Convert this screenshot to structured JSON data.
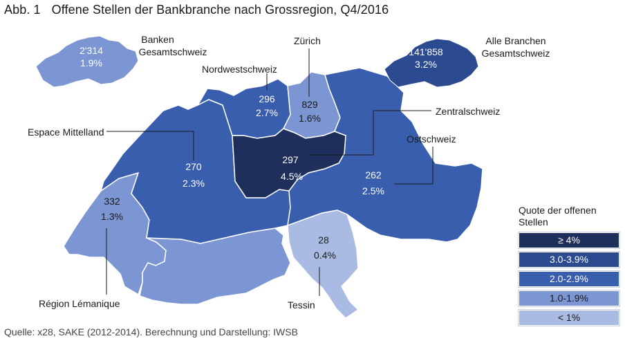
{
  "title": {
    "figure": "Abb. 1",
    "text": "Offene Stellen der Bankbranche nach Grossregion, Q4/2016"
  },
  "source": "Quelle: x28, SAKE (2012-2014). Berechnung und Darstellung: IWSB",
  "colors": {
    "class_ge4": "#1f2f5c",
    "class_3_39": "#2c4a8f",
    "class_2_29": "#3a5eae",
    "class_1_19": "#7b96d3",
    "class_lt1": "#a9bbe2"
  },
  "regions": {
    "nordwestschweiz": {
      "name": "Nordwestschweiz",
      "count": "296",
      "rate": "2.7%"
    },
    "zuerich": {
      "name": "Zürich",
      "count": "829",
      "rate": "1.6%"
    },
    "zentralschweiz": {
      "name": "Zentralschweiz",
      "count": "297",
      "rate": "4.5%"
    },
    "ostschweiz": {
      "name": "Ostschweiz",
      "count": "262",
      "rate": "2.5%"
    },
    "espace_mittelland": {
      "name": "Espace Mittelland",
      "count": "270",
      "rate": "2.3%"
    },
    "region_lemanique": {
      "name": "Région Lémanique",
      "count": "332",
      "rate": "1.3%"
    },
    "tessin": {
      "name": "Tessin",
      "count": "28",
      "rate": "0.4%"
    }
  },
  "inset_banken": {
    "name_line1": "Banken",
    "name_line2": "Gesamtschweiz",
    "count": "2'314",
    "rate": "1.9%"
  },
  "inset_alle": {
    "name_line1": "Alle Branchen",
    "name_line2": "Gesamtschweiz",
    "count": "141'858",
    "rate": "3.2%"
  },
  "legend": {
    "title": "Quote der offenen Stellen",
    "items": [
      "≥ 4%",
      "3.0-3.9%",
      "2.0-2.9%",
      "1.0-1.9%",
      "< 1%"
    ]
  }
}
